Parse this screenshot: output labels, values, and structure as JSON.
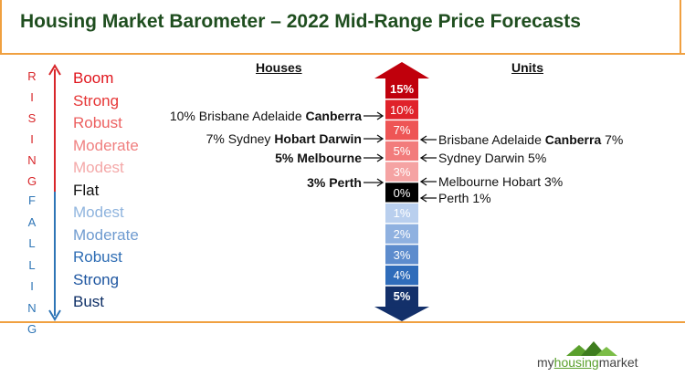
{
  "title": "Housing Market Barometer – 2022 Mid-Range Price Forecasts",
  "rising_letters": [
    "R",
    "I",
    "S",
    "I",
    "N",
    "G"
  ],
  "falling_letters": [
    "F",
    "A",
    "L",
    "L",
    "I",
    "N",
    "G"
  ],
  "scale": [
    {
      "label": "Boom",
      "color": "#e0161e"
    },
    {
      "label": "Strong",
      "color": "#e63636"
    },
    {
      "label": "Robust",
      "color": "#ec6060"
    },
    {
      "label": "Moderate",
      "color": "#f08080"
    },
    {
      "label": "Modest",
      "color": "#f4a8a8"
    },
    {
      "label": "Flat",
      "color": "#111111"
    },
    {
      "label": "Modest",
      "color": "#8fb4de"
    },
    {
      "label": "Moderate",
      "color": "#6f9bd0"
    },
    {
      "label": "Robust",
      "color": "#2e6db4"
    },
    {
      "label": "Strong",
      "color": "#1d55a0"
    },
    {
      "label": "Bust",
      "color": "#0e2f66"
    }
  ],
  "columns": {
    "houses": "Houses",
    "units": "Units"
  },
  "barometer": [
    {
      "label": "15%",
      "color": "#c0000c",
      "bold": true
    },
    {
      "label": "10%",
      "color": "#e0222a",
      "bold": false
    },
    {
      "label": "7%",
      "color": "#ee5555",
      "bold": false
    },
    {
      "label": "5%",
      "color": "#f27c7c",
      "bold": false
    },
    {
      "label": "3%",
      "color": "#f5a3a3",
      "bold": false
    },
    {
      "label": "0%",
      "color": "#000000",
      "bold": false
    },
    {
      "label": "1%",
      "color": "#b9cfee",
      "bold": false
    },
    {
      "label": "2%",
      "color": "#8fb1e0",
      "bold": false
    },
    {
      "label": "3%",
      "color": "#5d8ccd",
      "bold": false
    },
    {
      "label": "4%",
      "color": "#2f6cba",
      "bold": false
    },
    {
      "label": "5%",
      "color": "#13306a",
      "bold": true
    }
  ],
  "houses_callouts": [
    {
      "pre": "10% Brisbane Adelaide ",
      "bold": "Canberra",
      "post": ""
    },
    {
      "pre": "7% Sydney ",
      "bold": "Hobart Darwin",
      "post": ""
    },
    {
      "pre": "",
      "bold": "5% Melbourne",
      "post": ""
    },
    {
      "pre": "",
      "bold": "3% Perth",
      "post": ""
    }
  ],
  "units_callouts": [
    {
      "pre": "Brisbane Adelaide ",
      "bold": "Canberra",
      "post": " 7%"
    },
    {
      "pre": "Sydney Darwin 5%",
      "bold": "",
      "post": ""
    },
    {
      "pre": "Melbourne Hobart 3%",
      "bold": "",
      "post": ""
    },
    {
      "pre": "Perth 1%",
      "bold": "",
      "post": ""
    }
  ],
  "logo": {
    "pre": "my",
    "highlight": "housing",
    "post": "market"
  },
  "colors": {
    "accent_orange": "#f0a040",
    "title_green": "#1f4e1f",
    "logo_green": "#5aa02c"
  }
}
